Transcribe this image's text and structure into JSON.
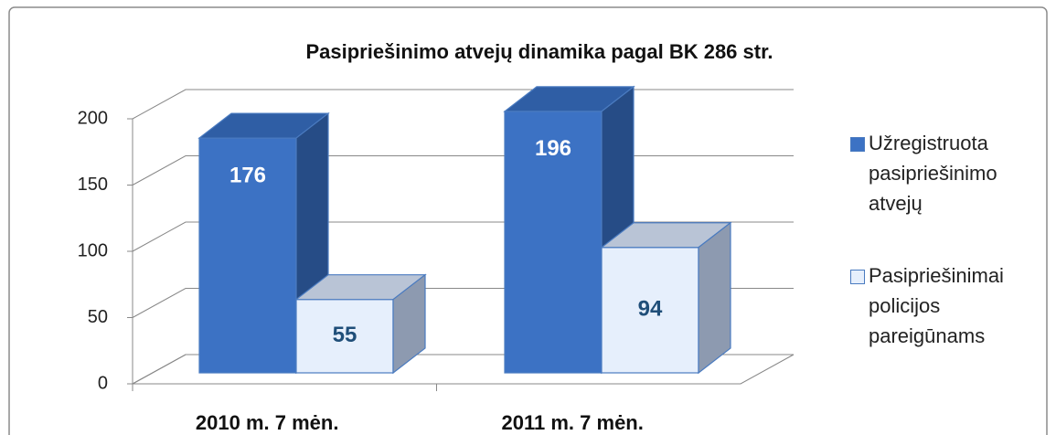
{
  "chart_data": {
    "type": "bar3d",
    "title": "Pasipriešinimo atvejų dinamika pagal BK 286 str.",
    "categories": [
      "2010 m. 7 mėn.",
      "2011 m. 7 mėn."
    ],
    "series": [
      {
        "name": "Užregistruota pasipriešinimo atvejų",
        "color": "#3c72c4",
        "values": [
          176,
          196
        ]
      },
      {
        "name": "Pasipriešinimai policijos pareigūnams",
        "color": "#e6effc",
        "values": [
          55,
          94
        ]
      }
    ],
    "ylim": [
      0,
      200
    ],
    "yticks": [
      0,
      50,
      100,
      150,
      200
    ],
    "grid": true,
    "legend": "right"
  }
}
